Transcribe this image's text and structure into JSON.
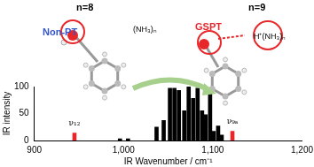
{
  "chart_data": {
    "type": "bar",
    "x": [
      945,
      996,
      1005,
      1037,
      1045,
      1052,
      1057,
      1062,
      1068,
      1073,
      1078,
      1083,
      1088,
      1092,
      1097,
      1101,
      1106,
      1110,
      1122
    ],
    "values": [
      14,
      3,
      3,
      25,
      37,
      97,
      97,
      93,
      55,
      100,
      78,
      97,
      55,
      48,
      93,
      17,
      27,
      10,
      17
    ],
    "colors": [
      "#e8272a",
      "#000000",
      "#000000",
      "#000000",
      "#000000",
      "#000000",
      "#000000",
      "#000000",
      "#000000",
      "#000000",
      "#000000",
      "#000000",
      "#000000",
      "#000000",
      "#000000",
      "#000000",
      "#000000",
      "#000000",
      "#e8272a"
    ],
    "xlim": [
      900,
      1200
    ],
    "xticks": [
      900,
      1000,
      1100,
      1200
    ],
    "ylim": [
      0,
      100
    ],
    "yticks": [
      0,
      50,
      100
    ],
    "x_label": "IR Wavenumber / cm⁻¹",
    "y_label": "IR intensity",
    "annotations": [
      {
        "text": "ν₁₂",
        "x": 945,
        "y": 24
      },
      {
        "text": "ν₉ₐ",
        "x": 1122,
        "y": 27
      }
    ],
    "grid": false
  },
  "figure_labels": [
    {
      "text": "n=8",
      "color": "#000000"
    },
    {
      "text": "Non-PT",
      "color": "#3355cc"
    },
    {
      "text": "(NH₃)ₙ",
      "color": "#000000"
    },
    {
      "text": "n=9",
      "color": "#000000"
    },
    {
      "text": "GSPT",
      "color": "#e8272a"
    },
    {
      "text": "H⁺(NH₃)ₙ",
      "color": "#000000"
    }
  ]
}
